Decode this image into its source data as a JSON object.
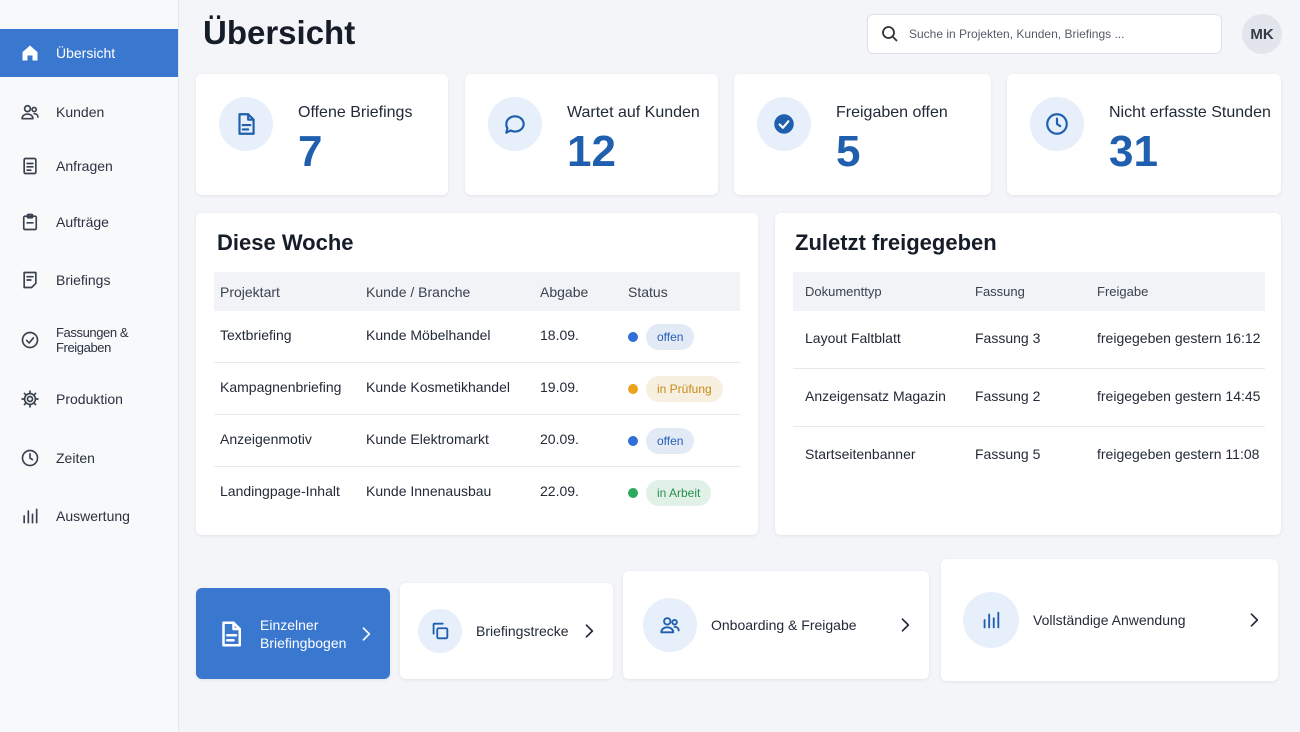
{
  "sidebar": {
    "active": 0,
    "items": [
      "Übersicht",
      "Kunden",
      "Anfragen",
      "Aufträge",
      "Briefings",
      "Fassungen & Freigaben",
      "Produktion",
      "Zeiten",
      "Auswertung"
    ]
  },
  "header": {
    "title": "Übersicht",
    "search_placeholder": "Suche in Projekten, Kunden, Briefings ...",
    "avatar": "MK"
  },
  "kpis": [
    {
      "label": "Offene Briefings",
      "value": 7
    },
    {
      "label": "Wartet auf Kunden",
      "value": 12
    },
    {
      "label": "Freigaben offen",
      "value": 5
    },
    {
      "label": "Nicht erfasste Stunden",
      "value": 31
    }
  ],
  "week": {
    "title": "Diese Woche",
    "columns": [
      "Projektart",
      "Kunde / Branche",
      "Abgabe",
      "Status"
    ],
    "rows": [
      {
        "cells": [
          "Textbriefing",
          "Kunde Möbelhandel",
          "18.09."
        ],
        "status": "offen",
        "status_color": "#2f6fd6"
      },
      {
        "cells": [
          "Kampagnenbriefing",
          "Kunde Kosmetikhandel",
          "19.09."
        ],
        "status": "in Prüfung",
        "status_color": "#e9a21a"
      },
      {
        "cells": [
          "Anzeigenmotiv",
          "Kunde Elektromarkt",
          "20.09."
        ],
        "status": "offen",
        "status_color": "#2f6fd6"
      },
      {
        "cells": [
          "Landingpage-Inhalt",
          "Kunde Innenausbau",
          "22.09."
        ],
        "status": "in Arbeit",
        "status_color": "#2eaa5c"
      }
    ]
  },
  "recent": {
    "title": "Zuletzt freigegeben",
    "columns": [
      "Dokumenttyp",
      "Fassung",
      "Freigabe"
    ],
    "rows": [
      [
        "Layout Faltblatt",
        "Fassung 3",
        "freigegeben gestern 16:12"
      ],
      [
        "Anzeigensatz Magazin",
        "Fassung 2",
        "freigegeben gestern 14:45"
      ],
      [
        "Startseitenbanner",
        "Fassung 5",
        "freigegeben gestern 11:08"
      ]
    ]
  },
  "actions": {
    "active": 0,
    "items": [
      "Einzelner Briefingbogen",
      "Briefingstrecke",
      "Onboarding & Freigabe",
      "Vollständige Anwendung"
    ]
  }
}
